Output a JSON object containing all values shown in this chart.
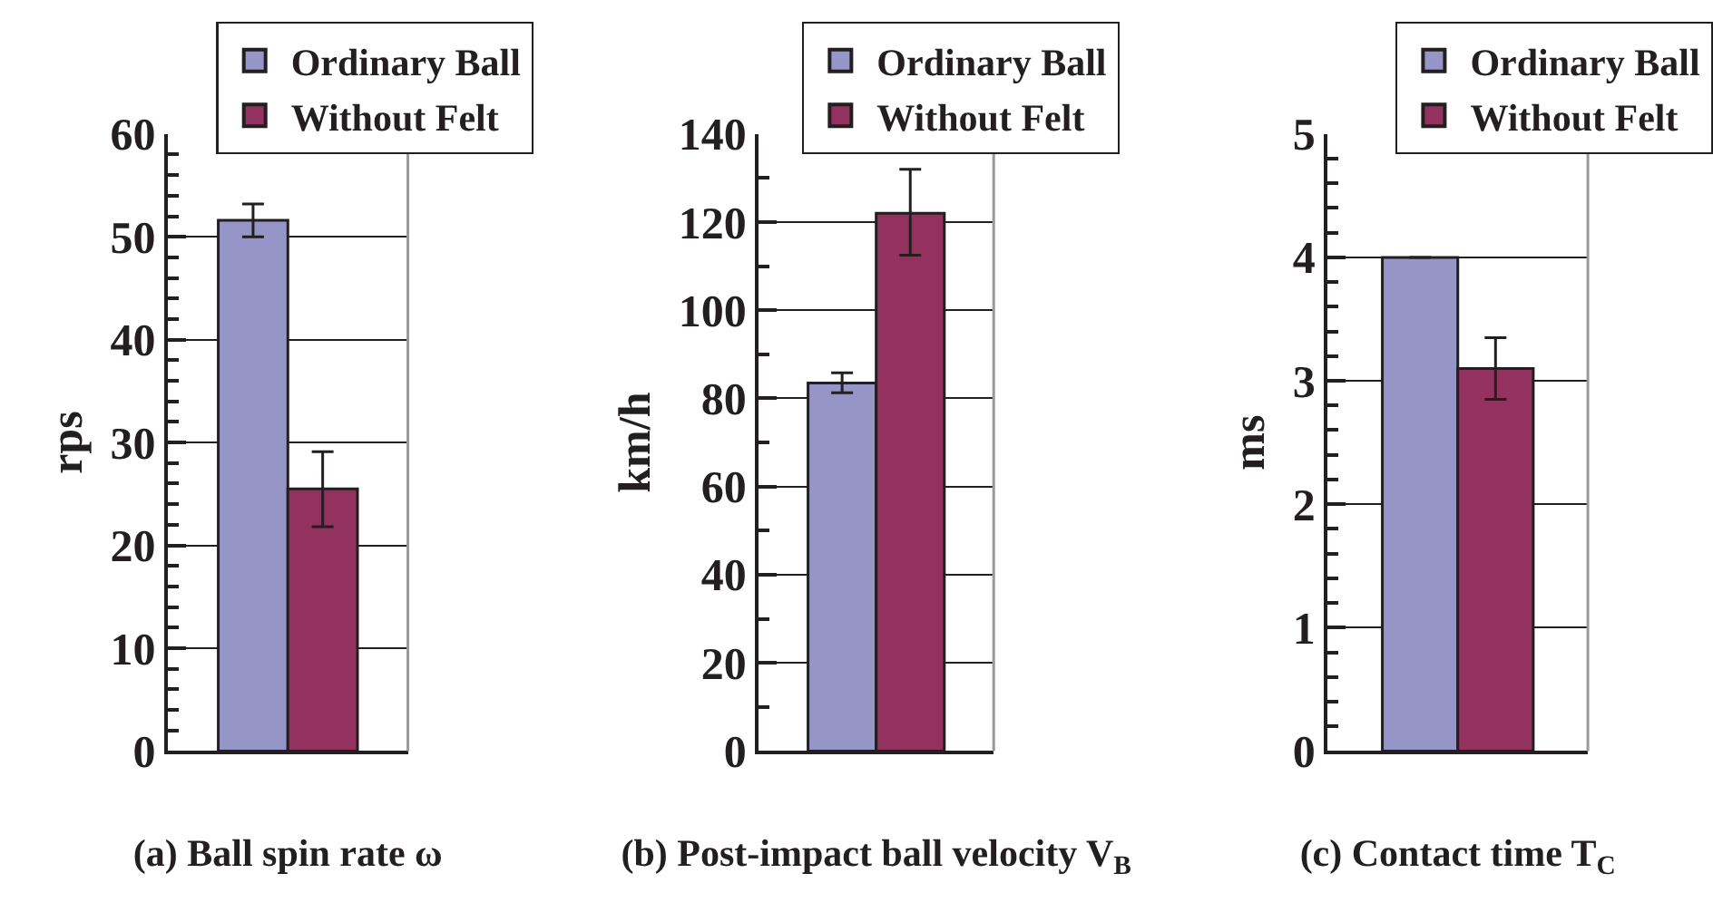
{
  "chart_data": [
    {
      "type": "bar",
      "categories": [
        null
      ],
      "xlabel": "(a) Ball spin rate ω",
      "ylabel": "rps",
      "ylim": [
        0,
        60
      ],
      "yticks": [
        0,
        {
          "value": 2,
          "label": null
        },
        {
          "value": 4,
          "label": null
        },
        {
          "value": 6,
          "label": null
        },
        {
          "value": 8,
          "label": null
        },
        10,
        {
          "value": 12,
          "label": null
        },
        {
          "value": 14,
          "label": null
        },
        {
          "value": 16,
          "label": null
        },
        {
          "value": 18,
          "label": null
        },
        20,
        {
          "value": 22,
          "label": null
        },
        {
          "value": 24,
          "label": null
        },
        {
          "value": 26,
          "label": null
        },
        {
          "value": 28,
          "label": null
        },
        30,
        {
          "value": 32,
          "label": null
        },
        {
          "value": 34,
          "label": null
        },
        {
          "value": 36,
          "label": null
        },
        {
          "value": 38,
          "label": null
        },
        40,
        {
          "value": 42,
          "label": null
        },
        {
          "value": 44,
          "label": null
        },
        {
          "value": 46,
          "label": null
        },
        {
          "value": 48,
          "label": null
        },
        50,
        {
          "value": 52,
          "label": null
        },
        {
          "value": 54,
          "label": null
        },
        {
          "value": 56,
          "label": null
        },
        {
          "value": 58,
          "label": null
        },
        60
      ],
      "grid": "y",
      "legend": "top right",
      "tick_labels": "y",
      "series": [
        {
          "name": "Ordinary Ball",
          "color": "#9595c8",
          "values": [
            51.6
          ],
          "errors": [
            [
              50,
              53.2
            ]
          ]
        },
        {
          "name": "Without Felt",
          "color": "#93325e",
          "values": [
            25.5
          ],
          "errors": [
            [
              21.8,
              29.1
            ]
          ]
        }
      ]
    },
    {
      "type": "bar",
      "categories": [
        null
      ],
      "xlabel": "(b) Post-impact ball velocity V$_{B}$",
      "ylabel": "km/h",
      "ylim": [
        0,
        140
      ],
      "yticks": [
        0,
        {
          "value": 10,
          "label": null
        },
        20,
        {
          "value": 30,
          "label": null
        },
        40,
        {
          "value": 50,
          "label": null
        },
        60,
        {
          "value": 70,
          "label": null
        },
        80,
        {
          "value": 90,
          "label": null
        },
        100,
        {
          "value": 110,
          "label": null
        },
        120,
        {
          "value": 130,
          "label": null
        },
        140
      ],
      "grid": "y",
      "legend": "top right",
      "tick_labels": "y",
      "series": [
        {
          "name": "Ordinary Ball",
          "color": "#9595c8",
          "values": [
            83.5
          ],
          "errors": [
            [
              81.3,
              85.8
            ]
          ]
        },
        {
          "name": "Without Felt",
          "color": "#93325e",
          "values": [
            122
          ],
          "errors": [
            [
              112.5,
              132
            ]
          ]
        }
      ]
    },
    {
      "type": "bar",
      "categories": [
        null
      ],
      "xlabel": "(c) Contact time T$_{C}$",
      "ylabel": "ms",
      "ylim": [
        0,
        5
      ],
      "yticks": [
        0,
        {
          "value": 0.2,
          "label": null
        },
        {
          "value": 0.4,
          "label": null
        },
        {
          "value": 0.6,
          "label": null
        },
        {
          "value": 0.8,
          "label": null
        },
        1,
        {
          "value": 1.2,
          "label": null
        },
        {
          "value": 1.4,
          "label": null
        },
        {
          "value": 1.6,
          "label": null
        },
        {
          "value": 1.8,
          "label": null
        },
        2,
        {
          "value": 2.2,
          "label": null
        },
        {
          "value": 2.4,
          "label": null
        },
        {
          "value": 2.6,
          "label": null
        },
        {
          "value": 2.8,
          "label": null
        },
        3,
        {
          "value": 3.2,
          "label": null
        },
        {
          "value": 3.4,
          "label": null
        },
        {
          "value": 3.6,
          "label": null
        },
        {
          "value": 3.8,
          "label": null
        },
        4,
        {
          "value": 4.2,
          "label": null
        },
        {
          "value": 4.4,
          "label": null
        },
        {
          "value": 4.6,
          "label": null
        },
        {
          "value": 4.8,
          "label": null
        },
        5
      ],
      "grid": "y",
      "legend": "top right",
      "tick_labels": "y",
      "series": [
        {
          "name": "Ordinary Ball",
          "color": "#9595c8",
          "values": [
            4.0
          ],
          "errors": [
            null
          ]
        },
        {
          "name": "Without Felt",
          "color": "#93325e",
          "values": [
            3.1
          ],
          "errors": [
            [
              2.85,
              3.35
            ]
          ]
        }
      ]
    }
  ]
}
